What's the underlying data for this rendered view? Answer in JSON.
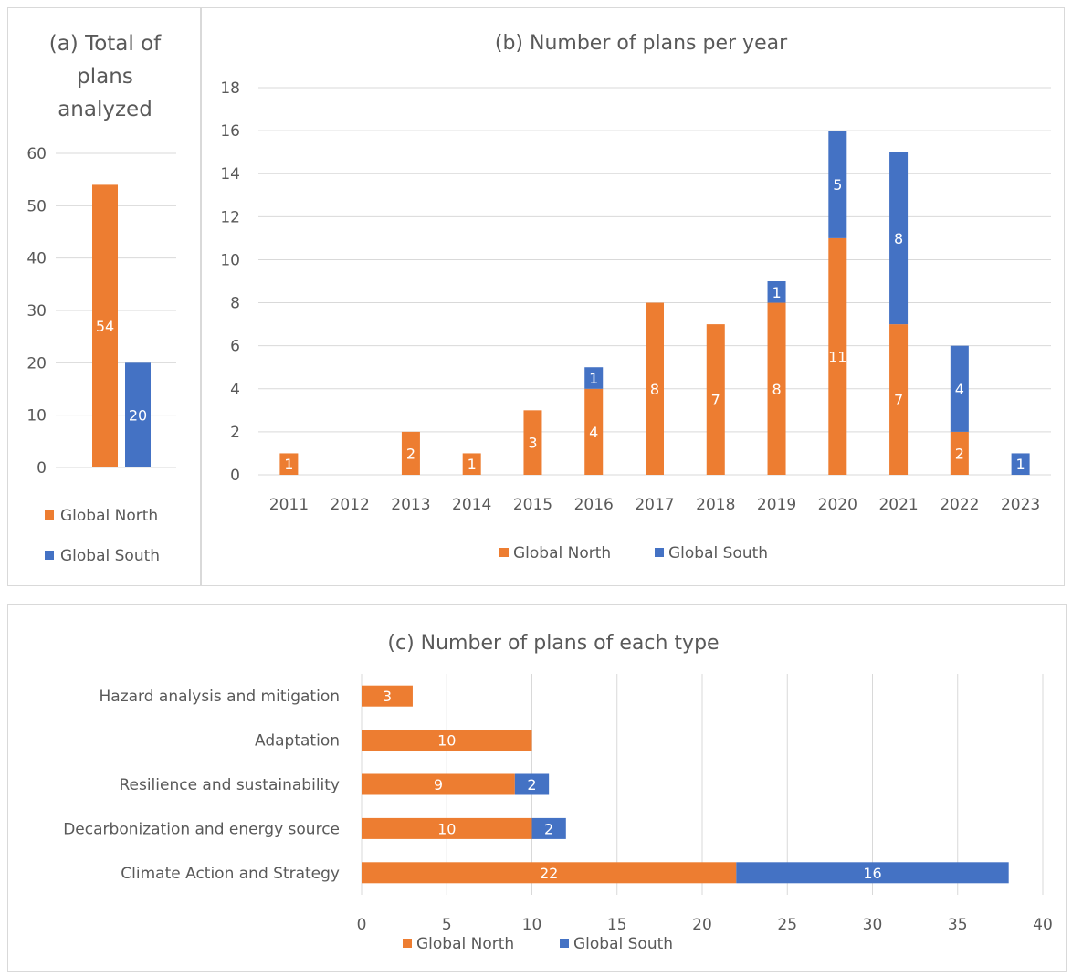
{
  "colors": {
    "north": "#ED7D31",
    "south": "#4472C4",
    "grid": "#d9d9d9",
    "text": "#595959"
  },
  "chart_data": [
    {
      "id": "a",
      "type": "bar",
      "title_lines": [
        "(a) Total of",
        "plans",
        "analyzed"
      ],
      "categories": [
        ""
      ],
      "series": [
        {
          "name": "Global North",
          "values": [
            54
          ]
        },
        {
          "name": "Global South",
          "values": [
            20
          ]
        }
      ],
      "ylim": [
        0,
        60
      ],
      "yticks": [
        0,
        10,
        20,
        30,
        40,
        50,
        60
      ],
      "grid": true,
      "legend": "bottom"
    },
    {
      "id": "b",
      "type": "bar",
      "stacked": true,
      "title": "(b) Number of plans per year",
      "categories": [
        "2011",
        "2012",
        "2013",
        "2014",
        "2015",
        "2016",
        "2017",
        "2018",
        "2019",
        "2020",
        "2021",
        "2022",
        "2023"
      ],
      "series": [
        {
          "name": "Global North",
          "values": [
            1,
            0,
            2,
            1,
            3,
            4,
            8,
            7,
            8,
            11,
            7,
            2,
            0
          ]
        },
        {
          "name": "Global South",
          "values": [
            0,
            0,
            0,
            0,
            0,
            1,
            0,
            0,
            1,
            5,
            8,
            4,
            1
          ]
        }
      ],
      "ylim": [
        0,
        18
      ],
      "yticks": [
        0,
        2,
        4,
        6,
        8,
        10,
        12,
        14,
        16,
        18
      ],
      "grid": true,
      "legend": "bottom"
    },
    {
      "id": "c",
      "type": "bar",
      "orientation": "horizontal",
      "stacked": true,
      "title": "(c) Number of plans of each type",
      "categories": [
        "Hazard analysis and mitigation",
        "Adaptation",
        "Resilience and sustainability",
        "Decarbonization and energy source",
        "Climate Action and Strategy"
      ],
      "series": [
        {
          "name": "Global North",
          "values": [
            3,
            10,
            9,
            10,
            22
          ]
        },
        {
          "name": "Global South",
          "values": [
            0,
            0,
            2,
            2,
            16
          ]
        }
      ],
      "xlim": [
        0,
        40
      ],
      "xticks": [
        0,
        5,
        10,
        15,
        20,
        25,
        30,
        35,
        40
      ],
      "grid": true,
      "legend": "bottom"
    }
  ]
}
